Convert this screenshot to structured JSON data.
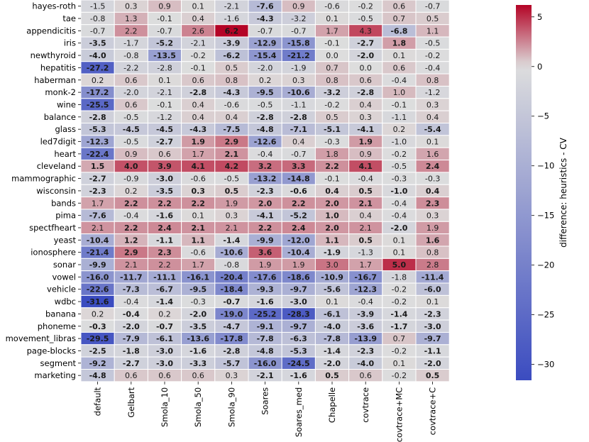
{
  "chart_data": {
    "type": "heatmap",
    "rows": [
      "hayes-roth",
      "tae",
      "appendicitis",
      "iris",
      "newthyroid",
      "hepatitis",
      "haberman",
      "monk-2",
      "wine",
      "balance",
      "glass",
      "led7digit",
      "heart",
      "cleveland",
      "mammographic",
      "wisconsin",
      "bands",
      "pima",
      "spectfheart",
      "yeast",
      "ionosphere",
      "sonar",
      "vowel",
      "vehicle",
      "wdbc",
      "banana",
      "phoneme",
      "movement_libras",
      "page-blocks",
      "segment",
      "marketing"
    ],
    "columns": [
      "default",
      "Gelbart",
      "Smola_10",
      "Smola_50",
      "Smola_90",
      "Soares",
      "Soares_med",
      "Chapelle",
      "covtrace",
      "covtrace+MC",
      "covtrace+C"
    ],
    "values": [
      [
        -1.5,
        0.3,
        0.9,
        0.1,
        -2.1,
        -7.6,
        0.9,
        -0.6,
        -0.2,
        0.6,
        -0.7
      ],
      [
        -0.8,
        1.3,
        -0.1,
        0.4,
        -1.6,
        -4.3,
        -3.2,
        0.1,
        -0.5,
        0.7,
        0.5
      ],
      [
        -0.7,
        2.2,
        -0.7,
        2.6,
        6.2,
        -0.7,
        -0.7,
        1.7,
        4.3,
        -6.8,
        1.1
      ],
      [
        -3.5,
        -1.7,
        -5.2,
        -2.1,
        -3.9,
        -12.9,
        -15.8,
        -0.1,
        -2.7,
        1.8,
        -0.5
      ],
      [
        -4.0,
        -0.8,
        -13.5,
        -0.2,
        -6.2,
        -15.4,
        -21.2,
        -0.0,
        -2.0,
        0.1,
        -0.2
      ],
      [
        -27.2,
        -2.2,
        -2.8,
        -0.1,
        0.5,
        -2.0,
        -1.9,
        0.7,
        0.0,
        0.6,
        -0.4
      ],
      [
        0.2,
        0.6,
        0.1,
        0.6,
        0.8,
        0.2,
        0.3,
        0.8,
        0.6,
        -0.4,
        0.8
      ],
      [
        -17.2,
        -2.0,
        -2.1,
        -2.8,
        -4.3,
        -9.5,
        -10.6,
        -3.2,
        -2.8,
        1.0,
        -1.2
      ],
      [
        -25.5,
        0.6,
        -0.1,
        0.4,
        -0.6,
        -0.5,
        -1.1,
        -0.2,
        0.4,
        -0.1,
        0.3
      ],
      [
        -2.8,
        -0.5,
        -1.2,
        0.4,
        0.4,
        -2.8,
        -2.8,
        0.5,
        0.3,
        -1.1,
        0.4
      ],
      [
        -5.3,
        -4.5,
        -4.5,
        -4.3,
        -7.5,
        -4.8,
        -7.1,
        -5.1,
        -4.1,
        0.2,
        -5.4
      ],
      [
        -12.3,
        -0.5,
        -2.7,
        1.9,
        2.9,
        -12.6,
        0.4,
        -0.3,
        1.9,
        -1.0,
        0.1
      ],
      [
        -22.4,
        0.9,
        0.6,
        1.7,
        2.1,
        -0.4,
        -0.7,
        1.8,
        0.9,
        -0.2,
        1.6
      ],
      [
        1.5,
        4.0,
        3.9,
        4.1,
        4.2,
        3.2,
        3.3,
        2.2,
        4.1,
        -0.5,
        2.4
      ],
      [
        -2.7,
        -0.9,
        -3.0,
        -0.6,
        -0.5,
        -13.2,
        -14.8,
        -0.1,
        -0.4,
        -0.3,
        -0.3
      ],
      [
        -2.3,
        0.2,
        -3.5,
        0.3,
        0.5,
        -2.3,
        -0.6,
        0.4,
        0.5,
        -1.0,
        0.4
      ],
      [
        1.7,
        2.2,
        2.2,
        2.2,
        1.9,
        2.0,
        2.2,
        2.0,
        2.1,
        -0.4,
        2.3
      ],
      [
        -7.6,
        -0.4,
        -1.6,
        0.1,
        0.3,
        -4.1,
        -5.2,
        1.0,
        0.4,
        -0.4,
        0.3
      ],
      [
        2.1,
        2.2,
        2.4,
        2.1,
        2.1,
        2.2,
        2.4,
        2.0,
        2.1,
        -2.0,
        1.9
      ],
      [
        -10.4,
        1.2,
        -1.1,
        1.1,
        -1.4,
        -9.9,
        -12.0,
        1.1,
        0.5,
        0.1,
        1.6
      ],
      [
        -21.4,
        2.9,
        2.3,
        -0.6,
        -10.6,
        3.6,
        -10.4,
        -1.9,
        -1.3,
        0.1,
        0.8
      ],
      [
        -9.9,
        2.1,
        2.2,
        1.7,
        -0.8,
        1.9,
        1.9,
        3.0,
        1.7,
        5.0,
        2.8
      ],
      [
        -16.0,
        -11.7,
        -11.1,
        -16.1,
        -20.4,
        -17.6,
        -18.6,
        -10.9,
        -16.7,
        -1.8,
        -11.4
      ],
      [
        -22.6,
        -7.3,
        -6.7,
        -9.5,
        -18.4,
        -9.3,
        -9.7,
        -5.6,
        -12.3,
        -0.2,
        -6.0
      ],
      [
        -31.6,
        -0.4,
        -1.4,
        -0.3,
        -0.7,
        -1.6,
        -3.0,
        0.1,
        -0.4,
        -0.2,
        0.1
      ],
      [
        0.2,
        -0.4,
        0.2,
        -2.0,
        -19.0,
        -25.2,
        -28.3,
        -6.1,
        -3.9,
        -1.4,
        -2.3
      ],
      [
        -0.3,
        -2.0,
        -0.7,
        -3.5,
        -4.7,
        -9.1,
        -9.7,
        -4.0,
        -3.6,
        -1.7,
        -3.0
      ],
      [
        -29.5,
        -7.9,
        -6.1,
        -13.6,
        -17.8,
        -7.8,
        -6.3,
        -7.8,
        -13.9,
        0.7,
        -9.7
      ],
      [
        -2.5,
        -1.8,
        -3.0,
        -1.6,
        -2.8,
        -4.8,
        -5.3,
        -1.4,
        -2.3,
        -0.2,
        -1.1
      ],
      [
        -9.2,
        -2.7,
        -3.0,
        -3.3,
        -5.7,
        -16.0,
        -24.5,
        -2.0,
        -4.0,
        0.1,
        -2.0
      ],
      [
        -4.8,
        0.6,
        0.6,
        0.6,
        0.3,
        -2.1,
        -1.6,
        0.5,
        0.6,
        -0.2,
        0.5
      ]
    ],
    "bold": [
      [
        0,
        0,
        0,
        0,
        0,
        1,
        0,
        0,
        0,
        0,
        0
      ],
      [
        0,
        0,
        0,
        0,
        0,
        1,
        0,
        0,
        0,
        0,
        0
      ],
      [
        0,
        0,
        0,
        0,
        1,
        0,
        0,
        0,
        0,
        1,
        0
      ],
      [
        1,
        0,
        1,
        0,
        1,
        1,
        1,
        0,
        1,
        1,
        0
      ],
      [
        1,
        0,
        1,
        0,
        1,
        1,
        1,
        0,
        1,
        0,
        0
      ],
      [
        1,
        0,
        0,
        0,
        0,
        0,
        0,
        0,
        0,
        0,
        0
      ],
      [
        0,
        0,
        0,
        0,
        0,
        0,
        0,
        0,
        0,
        0,
        0
      ],
      [
        1,
        0,
        0,
        1,
        1,
        1,
        1,
        1,
        1,
        0,
        0
      ],
      [
        1,
        0,
        0,
        0,
        0,
        0,
        0,
        0,
        0,
        0,
        0
      ],
      [
        1,
        0,
        0,
        0,
        0,
        1,
        1,
        0,
        0,
        0,
        0
      ],
      [
        1,
        1,
        1,
        1,
        1,
        1,
        1,
        1,
        1,
        0,
        1
      ],
      [
        1,
        0,
        1,
        1,
        1,
        1,
        0,
        0,
        1,
        0,
        0
      ],
      [
        1,
        0,
        0,
        0,
        1,
        0,
        0,
        0,
        0,
        0,
        0
      ],
      [
        1,
        1,
        1,
        1,
        1,
        1,
        1,
        1,
        1,
        0,
        1
      ],
      [
        1,
        0,
        1,
        0,
        0,
        1,
        1,
        0,
        0,
        0,
        0
      ],
      [
        1,
        0,
        1,
        1,
        1,
        1,
        1,
        1,
        1,
        1,
        1
      ],
      [
        0,
        1,
        1,
        1,
        0,
        1,
        1,
        1,
        1,
        0,
        1
      ],
      [
        1,
        0,
        1,
        0,
        0,
        1,
        1,
        1,
        0,
        0,
        0
      ],
      [
        0,
        1,
        1,
        1,
        0,
        1,
        1,
        1,
        0,
        1,
        0
      ],
      [
        1,
        1,
        1,
        1,
        1,
        1,
        1,
        1,
        1,
        0,
        1
      ],
      [
        1,
        1,
        1,
        0,
        1,
        1,
        1,
        1,
        0,
        0,
        0
      ],
      [
        1,
        0,
        0,
        0,
        0,
        0,
        0,
        0,
        0,
        1,
        0
      ],
      [
        1,
        1,
        1,
        1,
        1,
        1,
        1,
        1,
        1,
        0,
        1
      ],
      [
        1,
        1,
        1,
        1,
        1,
        1,
        1,
        1,
        1,
        0,
        1
      ],
      [
        1,
        0,
        1,
        0,
        1,
        1,
        1,
        0,
        0,
        0,
        0
      ],
      [
        0,
        1,
        0,
        1,
        1,
        1,
        1,
        1,
        1,
        1,
        1
      ],
      [
        1,
        1,
        1,
        1,
        1,
        1,
        1,
        1,
        1,
        1,
        1
      ],
      [
        1,
        1,
        1,
        1,
        1,
        1,
        1,
        1,
        1,
        0,
        1
      ],
      [
        1,
        1,
        1,
        1,
        1,
        1,
        1,
        1,
        1,
        0,
        1
      ],
      [
        1,
        1,
        1,
        1,
        1,
        1,
        1,
        1,
        1,
        0,
        1
      ],
      [
        1,
        0,
        0,
        0,
        0,
        1,
        1,
        1,
        0,
        0,
        1
      ]
    ],
    "colorbar": {
      "label": "difference: heuristics - CV",
      "vmin": -31.6,
      "vmax": 6.2,
      "center": 0,
      "ticks": [
        5,
        0,
        -5,
        -10,
        -15,
        -20,
        -25,
        -30
      ],
      "colormap": "coolwarm",
      "color_min": "#3b4cc0",
      "color_center": "#dddddd",
      "color_max": "#b40426"
    },
    "xlabel": "",
    "ylabel": "",
    "grid": false,
    "legend": "none"
  }
}
